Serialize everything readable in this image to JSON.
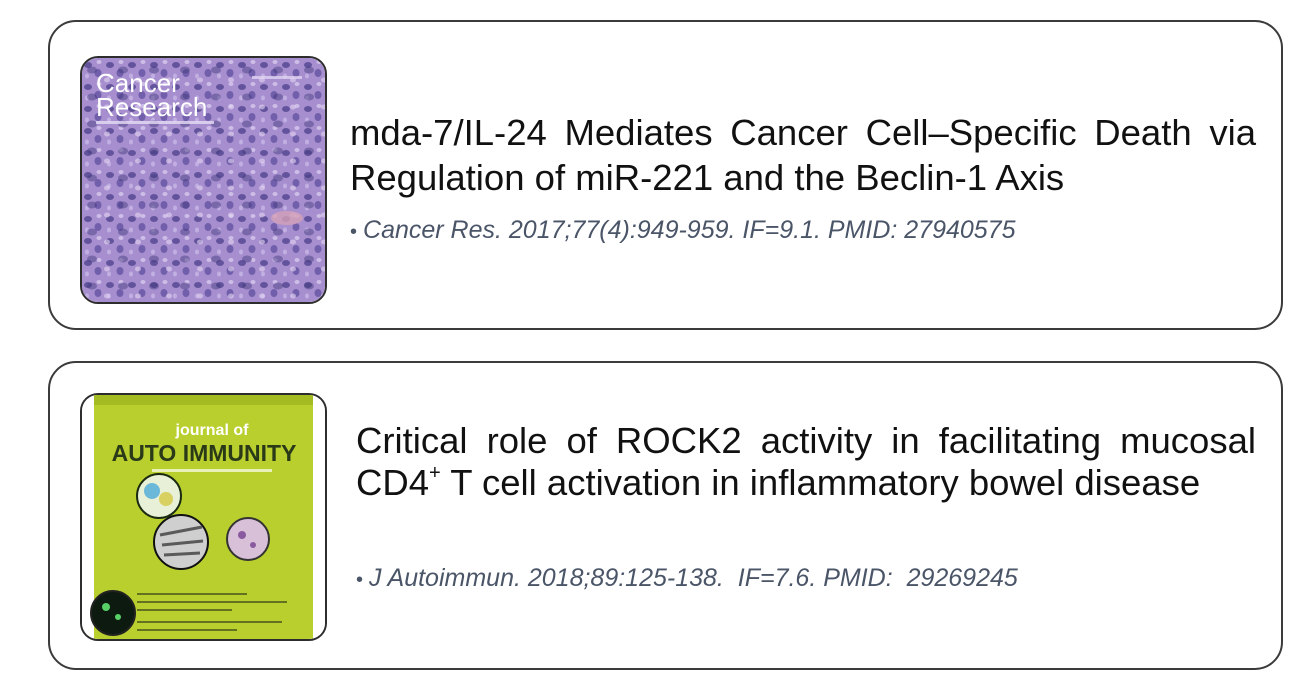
{
  "articles": [
    {
      "title": "mda-7/IL-24 Mediates Cancer Cell–Specific Death via Regulation of miR-221 and the Beclin-1 Axis",
      "citation": "Cancer Res. 2017;77(4):949-959. IF=9.1. PMID: 27940575",
      "cover": {
        "journal_line1": "Cancer",
        "journal_line2": "Research",
        "colors": {
          "background": "#a78fcf",
          "text": "#ffffff"
        }
      }
    },
    {
      "title_part1": "Critical role of ROCK2 activity in facilitating mucosal CD4",
      "title_sup": "+",
      "title_part2": " T cell activation in inflammatory bowel disease",
      "citation": "J Autoimmun. 2018;89:125-138.  IF=7.6. PMID:  29269245",
      "cover": {
        "journal_line1": "journal of",
        "journal_line2": "AUTO IMMUNITY",
        "colors": {
          "background": "#b9cf2e",
          "text": "#2a3a18"
        }
      }
    }
  ]
}
